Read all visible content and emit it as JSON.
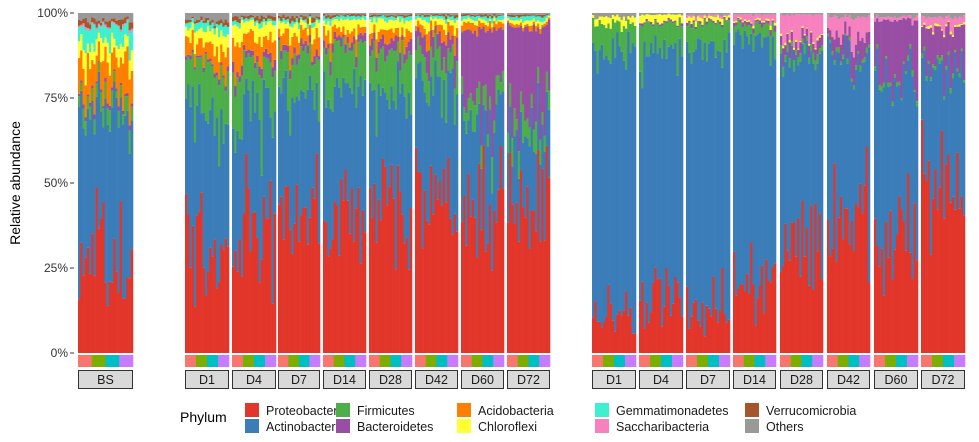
{
  "chart_data": {
    "type": "bar",
    "stacked": true,
    "ylabel": "Relative abundance",
    "ylim": [
      0,
      1
    ],
    "yticks": [
      "0%",
      "25%",
      "50%",
      "75%",
      "100%"
    ],
    "legend": {
      "title": "Phylum",
      "placement": "bottom"
    },
    "phyla": [
      "Proteobacteria",
      "Actinobacteria",
      "Firmicutes",
      "Bacteroidetes",
      "Acidobacteria",
      "Chloroflexi",
      "Gemmatimonadetes",
      "Saccharibacteria",
      "Verrucomicrobia",
      "Others"
    ],
    "colors": {
      "Proteobacteria": "#E3362B",
      "Actinobacteria": "#3A7DB8",
      "Firmicutes": "#4DAE4A",
      "Bacteroidetes": "#984EA3",
      "Acidobacteria": "#FF7F00",
      "Chloroflexi": "#FFFF33",
      "Gemmatimonadetes": "#3FF0D0",
      "Saccharibacteria": "#F781BF",
      "Verrucomicrobia": "#A65628",
      "Others": "#999999"
    },
    "strip_colors": [
      "#F8766D",
      "#7CAE00",
      "#00BFC4",
      "#C77CFF"
    ],
    "groups": [
      {
        "panels": [
          {
            "label": "BS",
            "mean": [
              0.3,
              0.42,
              0.04,
              0.01,
              0.09,
              0.05,
              0.05,
              0.005,
              0.015,
              0.02
            ]
          }
        ]
      },
      {
        "panels": [
          {
            "label": "D1",
            "mean": [
              0.34,
              0.37,
              0.14,
              0.01,
              0.05,
              0.04,
              0.02,
              0,
              0.01,
              0.02
            ]
          },
          {
            "label": "D4",
            "mean": [
              0.38,
              0.33,
              0.14,
              0.02,
              0.06,
              0.04,
              0.01,
              0,
              0.01,
              0.01
            ]
          },
          {
            "label": "D7",
            "mean": [
              0.37,
              0.38,
              0.13,
              0.02,
              0.04,
              0.03,
              0.01,
              0,
              0.01,
              0.01
            ]
          },
          {
            "label": "D14",
            "mean": [
              0.4,
              0.38,
              0.12,
              0.02,
              0.03,
              0.03,
              0.01,
              0,
              0.005,
              0.005
            ]
          },
          {
            "label": "D28",
            "mean": [
              0.45,
              0.33,
              0.11,
              0.03,
              0.03,
              0.03,
              0.01,
              0,
              0.005,
              0.005
            ]
          },
          {
            "label": "D42",
            "mean": [
              0.47,
              0.33,
              0.08,
              0.05,
              0.03,
              0.02,
              0.01,
              0,
              0.005,
              0.005
            ]
          },
          {
            "label": "D60",
            "mean": [
              0.42,
              0.27,
              0.06,
              0.2,
              0.02,
              0.01,
              0.01,
              0,
              0.005,
              0.005
            ]
          },
          {
            "label": "D72",
            "mean": [
              0.45,
              0.2,
              0.06,
              0.25,
              0.01,
              0.01,
              0.01,
              0,
              0.005,
              0.005
            ]
          }
        ]
      },
      {
        "panels": [
          {
            "label": "D1",
            "mean": [
              0.12,
              0.78,
              0.07,
              0,
              0,
              0.02,
              0,
              0,
              0,
              0.01
            ]
          },
          {
            "label": "D4",
            "mean": [
              0.18,
              0.7,
              0.09,
              0.005,
              0,
              0.02,
              0,
              0,
              0,
              0.005
            ]
          },
          {
            "label": "D7",
            "mean": [
              0.12,
              0.79,
              0.06,
              0.005,
              0,
              0.01,
              0,
              0.005,
              0,
              0.005
            ]
          },
          {
            "label": "D14",
            "mean": [
              0.22,
              0.7,
              0.04,
              0.01,
              0,
              0.005,
              0,
              0.02,
              0,
              0.005
            ]
          },
          {
            "label": "D28",
            "mean": [
              0.33,
              0.55,
              0.02,
              0.03,
              0,
              0.005,
              0,
              0.06,
              0,
              0.005
            ]
          },
          {
            "label": "D42",
            "mean": [
              0.4,
              0.49,
              0.01,
              0.04,
              0,
              0,
              0,
              0.05,
              0,
              0.01
            ]
          },
          {
            "label": "D60",
            "mean": [
              0.35,
              0.47,
              0.01,
              0.15,
              0,
              0,
              0,
              0.01,
              0,
              0.01
            ]
          },
          {
            "label": "D72",
            "mean": [
              0.5,
              0.35,
              0.01,
              0.1,
              0,
              0.005,
              0,
              0.03,
              0,
              0.01
            ]
          }
        ]
      }
    ]
  }
}
